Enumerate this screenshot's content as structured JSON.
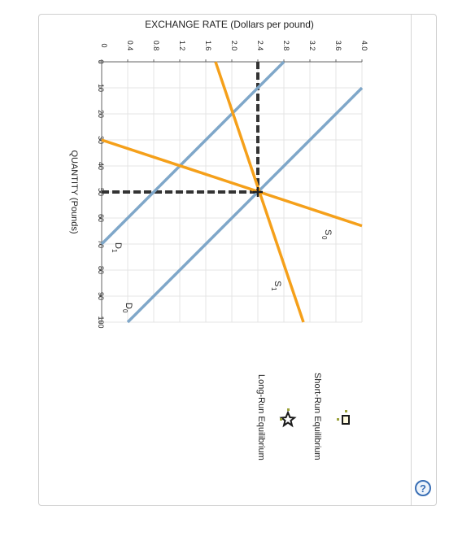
{
  "chart_data": {
    "type": "line",
    "title": "",
    "ylabel": "EXCHANGE RATE (Dollars per pound)",
    "xlabel": "QUANTITY (Pounds)",
    "x_ticks": [
      "0",
      "10",
      "20",
      "30",
      "40",
      "50",
      "60",
      "70",
      "80",
      "90",
      "100"
    ],
    "y_ticks": [
      "0",
      "0.4",
      "0.8",
      "1.2",
      "1.6",
      "2.0",
      "2.4",
      "2.8",
      "3.2",
      "3.6",
      "4.0"
    ],
    "xlim": [
      0,
      100
    ],
    "ylim": [
      0,
      4.0
    ],
    "grid": true,
    "series": [
      {
        "name": "D1",
        "label_main": "D",
        "label_sub": "1",
        "color": "#7fa7c9",
        "points": [
          [
            0,
            2.8
          ],
          [
            70,
            0
          ]
        ]
      },
      {
        "name": "D0",
        "label_main": "D",
        "label_sub": "0",
        "color": "#7fa7c9",
        "points": [
          [
            10,
            4.0
          ],
          [
            100,
            0.4
          ]
        ]
      },
      {
        "name": "S0",
        "label_main": "S",
        "label_sub": "0",
        "color": "#f5a01a",
        "points": [
          [
            30,
            0
          ],
          [
            63,
            4.0
          ]
        ]
      },
      {
        "name": "S1",
        "label_main": "S",
        "label_sub": "1",
        "color": "#f5a01a",
        "points": [
          [
            0,
            1.75
          ],
          [
            100,
            3.1
          ]
        ]
      }
    ],
    "dashed_guides": {
      "x": 50,
      "y": 2.4,
      "color": "#333333"
    },
    "equilibrium_point": {
      "x": 50,
      "y": 2.4
    }
  },
  "legend": {
    "items": [
      {
        "label": "Short-Run Equilibrium",
        "icon": "square-marker-icon"
      },
      {
        "label": "Long-Run Equilibrium",
        "icon": "star-marker-icon"
      }
    ]
  },
  "help": {
    "label": "?"
  }
}
